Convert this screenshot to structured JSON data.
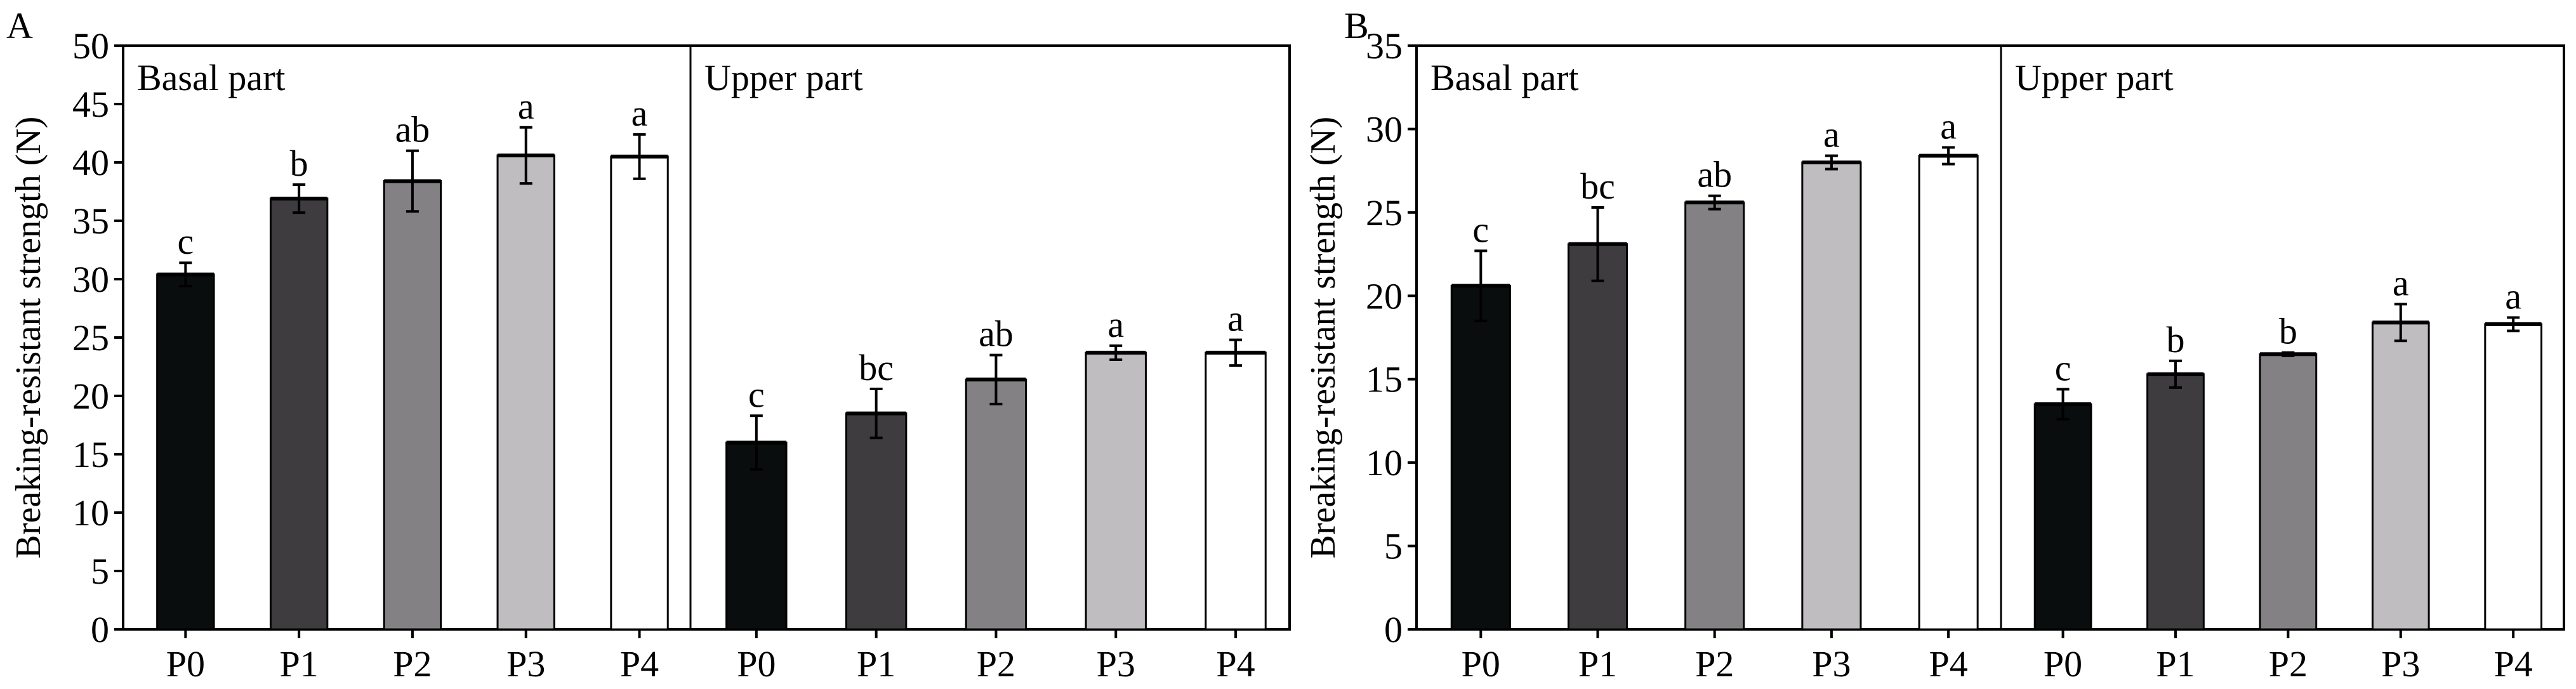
{
  "chart_data": [
    {
      "type": "bar",
      "panel_label": "A",
      "ylabel": "Breaking-resistant strength (N)",
      "ylim": [
        0,
        50
      ],
      "yticks": [
        0,
        5,
        10,
        15,
        20,
        25,
        30,
        35,
        40,
        45,
        50
      ],
      "groups": [
        {
          "name": "Basal part",
          "categories": [
            "P0",
            "P1",
            "P2",
            "P3",
            "P4"
          ],
          "values": [
            30.4,
            36.9,
            38.4,
            40.6,
            40.5
          ],
          "errors": [
            1.0,
            1.2,
            2.6,
            2.4,
            1.9
          ],
          "letters": [
            "c",
            "b",
            "ab",
            "a",
            "a"
          ]
        },
        {
          "name": "Upper part",
          "categories": [
            "P0",
            "P1",
            "P2",
            "P3",
            "P4"
          ],
          "values": [
            16.0,
            18.5,
            21.4,
            23.7,
            23.7
          ],
          "errors": [
            2.3,
            2.1,
            2.1,
            0.6,
            1.1
          ],
          "letters": [
            "c",
            "bc",
            "ab",
            "a",
            "a"
          ]
        }
      ]
    },
    {
      "type": "bar",
      "panel_label": "B",
      "ylabel": "Breaking-resistant strength (N)",
      "ylim": [
        0,
        35
      ],
      "yticks": [
        0,
        5,
        10,
        15,
        20,
        25,
        30,
        35
      ],
      "groups": [
        {
          "name": "Basal part",
          "categories": [
            "P0",
            "P1",
            "P2",
            "P3",
            "P4"
          ],
          "values": [
            20.6,
            23.1,
            25.6,
            28.0,
            28.4
          ],
          "errors": [
            2.1,
            2.2,
            0.4,
            0.4,
            0.5
          ],
          "letters": [
            "c",
            "bc",
            "ab",
            "a",
            "a"
          ]
        },
        {
          "name": "Upper part",
          "categories": [
            "P0",
            "P1",
            "P2",
            "P3",
            "P4"
          ],
          "values": [
            13.5,
            15.3,
            16.5,
            18.4,
            18.3
          ],
          "errors": [
            0.9,
            0.8,
            0.1,
            1.1,
            0.4
          ],
          "letters": [
            "c",
            "b",
            "b",
            "a",
            "a"
          ]
        }
      ]
    }
  ],
  "colors": {
    "bars": [
      "#0a0d0e",
      "#3e3c3f",
      "#838184",
      "#bfbdc0",
      "#ffffff"
    ],
    "stroke": "#000000"
  }
}
